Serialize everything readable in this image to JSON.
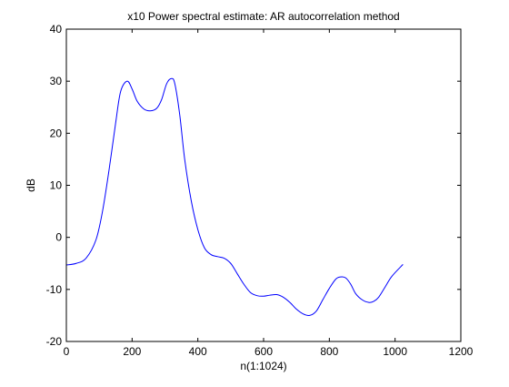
{
  "chart_data": {
    "type": "line",
    "title": "x10 Power spectral estimate: AR autocorrelation method",
    "xlabel": "n(1:1024)",
    "ylabel": "dB",
    "xlim": [
      0,
      1200
    ],
    "ylim": [
      -20,
      40
    ],
    "xticks": [
      0,
      200,
      400,
      600,
      800,
      1000,
      1200
    ],
    "yticks": [
      -20,
      -10,
      0,
      10,
      20,
      30,
      40
    ],
    "xtick_labels": [
      "0",
      "200",
      "400",
      "600",
      "800",
      "1000",
      "1200"
    ],
    "ytick_labels": [
      "-20",
      "-10",
      "0",
      "10",
      "20",
      "30",
      "40"
    ],
    "grid": false,
    "legend": "none",
    "line_color": "#0000ff",
    "axis_color": "#000000",
    "background": "#ffffff",
    "series": [
      {
        "x": [
          1,
          30,
          60,
          90,
          110,
          130,
          150,
          165,
          185,
          200,
          215,
          235,
          255,
          275,
          290,
          305,
          320,
          330,
          345,
          360,
          380,
          400,
          420,
          440,
          460,
          480,
          500,
          520,
          540,
          560,
          580,
          600,
          620,
          640,
          660,
          680,
          700,
          720,
          740,
          760,
          780,
          800,
          820,
          835,
          850,
          865,
          880,
          900,
          920,
          935,
          950,
          970,
          990,
          1024
        ],
        "y": [
          -5.3,
          -5.0,
          -4.0,
          -0.5,
          5.0,
          13.0,
          22.0,
          28.0,
          30.0,
          28.5,
          26.2,
          24.7,
          24.3,
          24.8,
          26.5,
          29.5,
          30.5,
          29.5,
          23.5,
          15.0,
          7.0,
          1.5,
          -2.0,
          -3.3,
          -3.7,
          -4.0,
          -5.0,
          -7.0,
          -9.0,
          -10.6,
          -11.2,
          -11.3,
          -11.1,
          -11.0,
          -11.5,
          -12.5,
          -13.8,
          -14.7,
          -15.0,
          -14.2,
          -12.0,
          -9.8,
          -8.0,
          -7.6,
          -7.8,
          -9.0,
          -10.8,
          -12.0,
          -12.5,
          -12.3,
          -11.5,
          -9.5,
          -7.5,
          -5.2
        ]
      }
    ]
  }
}
